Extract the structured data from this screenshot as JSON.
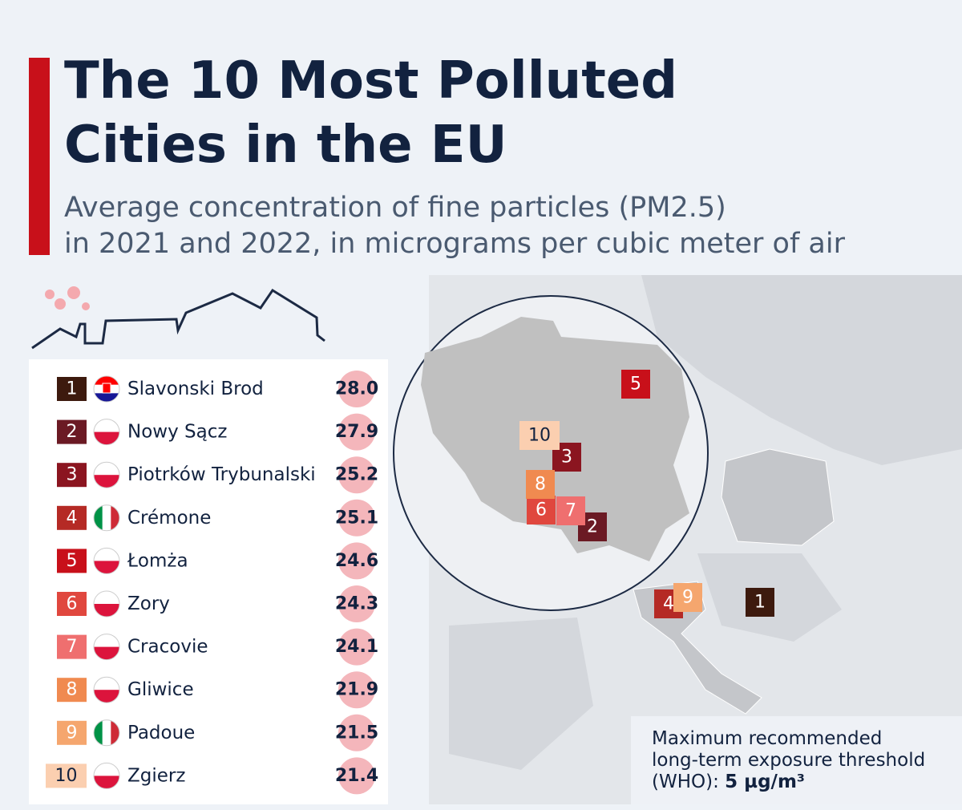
{
  "header": {
    "title_lines": [
      "The 10 Most Polluted",
      "Cities in the EU"
    ],
    "subtitle_lines": [
      "Average concentration of fine particles (PM2.5)",
      "in 2021 and 2022, in micrograms per cubic meter of air"
    ]
  },
  "table": {
    "rows": [
      {
        "rank": "1",
        "city": "Slavonski Brod",
        "value": "28.0",
        "flag": "hr",
        "color": "#3d1a0e"
      },
      {
        "rank": "2",
        "city": "Nowy Sącz",
        "value": "27.9",
        "flag": "pl",
        "color": "#6b1a24"
      },
      {
        "rank": "3",
        "city": "Piotrków Trybunalski",
        "value": "25.2",
        "flag": "pl",
        "color": "#8b1520"
      },
      {
        "rank": "4",
        "city": "Crémone",
        "value": "25.1",
        "flag": "it",
        "color": "#b52a25"
      },
      {
        "rank": "5",
        "city": "Łomża",
        "value": "24.6",
        "flag": "pl",
        "color": "#c8101a"
      },
      {
        "rank": "6",
        "city": "Zory",
        "value": "24.3",
        "flag": "pl",
        "color": "#e0473e"
      },
      {
        "rank": "7",
        "city": "Cracovie",
        "value": "24.1",
        "flag": "pl",
        "color": "#ef6f6f"
      },
      {
        "rank": "8",
        "city": "Gliwice",
        "value": "21.9",
        "flag": "pl",
        "color": "#f08a50"
      },
      {
        "rank": "9",
        "city": "Padoue",
        "value": "21.5",
        "flag": "it",
        "color": "#f5a66e"
      },
      {
        "rank": "10",
        "city": "Zgierz",
        "value": "21.4",
        "flag": "pl",
        "color": "#fbcfb0"
      }
    ]
  },
  "note": {
    "lines": [
      "Maximum recommended",
      "long-term exposure threshold"
    ],
    "prefix": "(WHO): ",
    "value": "5 µg/m³"
  }
}
